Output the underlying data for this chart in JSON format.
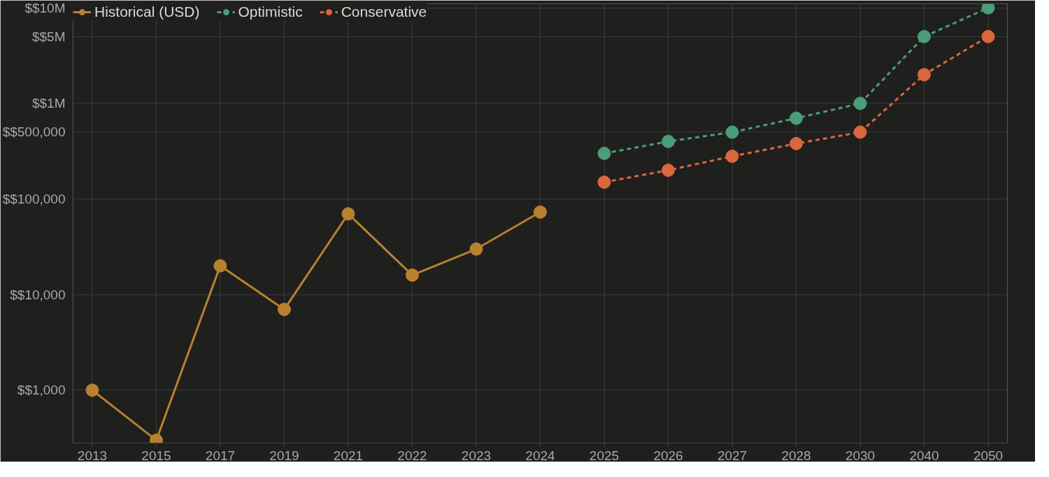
{
  "chart_data": {
    "type": "line",
    "categories": [
      "2013",
      "2015",
      "2017",
      "2019",
      "2021",
      "2022",
      "2023",
      "2024",
      "2025",
      "2026",
      "2027",
      "2028",
      "2030",
      "2040",
      "2050"
    ],
    "log": "y",
    "grid": true,
    "legend": "top left",
    "marker": "circle",
    "ylim": [
      280,
      11000000
    ],
    "yticks": [
      {
        "value": 1000,
        "label": "$$1,000"
      },
      {
        "value": 10000,
        "label": "$$10,000"
      },
      {
        "value": 100000,
        "label": "$$100,000"
      },
      {
        "value": 500000,
        "label": "$$500,000"
      },
      {
        "value": 1000000,
        "label": "$$1M"
      },
      {
        "value": 5000000,
        "label": "$$5M"
      },
      {
        "value": 10000000,
        "label": "$$10M"
      }
    ],
    "series": [
      {
        "name": "Historical (USD)",
        "color": "#b8812f",
        "line_style": "solid",
        "values": [
          1000,
          300,
          20000,
          7000,
          70000,
          16000,
          30000,
          73000,
          null,
          null,
          null,
          null,
          null,
          null,
          null
        ]
      },
      {
        "name": "Optimistic",
        "color": "#4a9d7a",
        "line_style": "dashed",
        "values": [
          null,
          null,
          null,
          null,
          null,
          null,
          null,
          null,
          300000,
          400000,
          500000,
          700000,
          1000000,
          5000000,
          10000000
        ]
      },
      {
        "name": "Conservative",
        "color": "#d9673f",
        "line_style": "dashed",
        "values": [
          null,
          null,
          null,
          null,
          null,
          null,
          null,
          null,
          150000,
          200000,
          280000,
          380000,
          500000,
          2000000,
          5000000
        ]
      }
    ]
  }
}
